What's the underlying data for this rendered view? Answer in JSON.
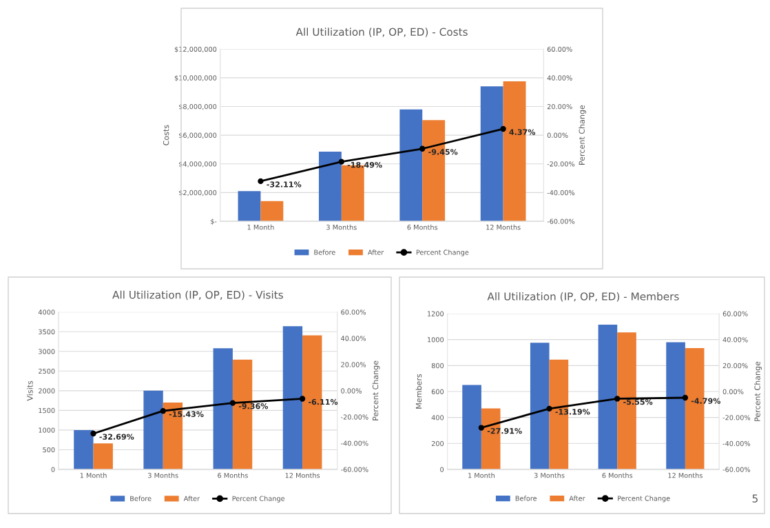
{
  "chart_data": [
    {
      "type": "bar",
      "title": "All Utilization (IP, OP, ED) - Costs",
      "ylabel": "Costs",
      "y2label": "Percent Change",
      "categories": [
        "1 Month",
        "3 Months",
        "6 Months",
        "12 Months"
      ],
      "series": [
        {
          "name": "Before",
          "color": "#4472c4",
          "values": [
            2100000,
            4850000,
            7800000,
            9400000
          ]
        },
        {
          "name": "After",
          "color": "#ed7d31",
          "values": [
            1400000,
            3900000,
            7050000,
            9750000
          ]
        },
        {
          "name": "Percent Change",
          "type": "line",
          "axis": "y2",
          "color": "#000000",
          "values": [
            -32.11,
            -18.49,
            -9.45,
            4.37
          ],
          "value_labels": [
            "-32.11%",
            "-18.49%",
            "-9.45%",
            "4.37%"
          ]
        }
      ],
      "ylim": [
        0,
        12000000
      ],
      "yticks": [
        {
          "value": 0,
          "label": "$-"
        },
        {
          "value": 2000000,
          "label": "$2,000,000"
        },
        {
          "value": 4000000,
          "label": "$4,000,000"
        },
        {
          "value": 6000000,
          "label": "$6,000,000"
        },
        {
          "value": 8000000,
          "label": "$8,000,000"
        },
        {
          "value": 10000000,
          "label": "$10,000,000"
        },
        {
          "value": 12000000,
          "label": "$12,000,000"
        }
      ],
      "y2lim": [
        -60,
        60
      ],
      "y2ticks": [
        {
          "value": -60,
          "label": "-60.00%"
        },
        {
          "value": -40,
          "label": "-40.00%"
        },
        {
          "value": -20,
          "label": "-20.00%"
        },
        {
          "value": 0,
          "label": "0.00%"
        },
        {
          "value": 20,
          "label": "20.00%"
        },
        {
          "value": 40,
          "label": "40.00%"
        },
        {
          "value": 60,
          "label": "60.00%"
        }
      ],
      "grid": "y",
      "legend": "bottom",
      "marker": "circle",
      "line_style": "solid"
    },
    {
      "type": "bar",
      "title": "All Utilization (IP, OP, ED) - Visits",
      "ylabel": "Visits",
      "y2label": "Percent Change",
      "categories": [
        "1 Month",
        "3 Months",
        "6 Months",
        "12 Months"
      ],
      "series": [
        {
          "name": "Before",
          "color": "#4472c4",
          "values": [
            1000,
            2000,
            3080,
            3640
          ]
        },
        {
          "name": "After",
          "color": "#ed7d31",
          "values": [
            660,
            1700,
            2790,
            3410
          ]
        },
        {
          "name": "Percent Change",
          "type": "line",
          "axis": "y2",
          "color": "#000000",
          "values": [
            -32.69,
            -15.43,
            -9.36,
            -6.11
          ],
          "value_labels": [
            "-32.69%",
            "-15.43%",
            "-9.36%",
            "-6.11%"
          ]
        }
      ],
      "ylim": [
        0,
        4000
      ],
      "yticks": [
        0,
        500,
        1000,
        1500,
        2000,
        2500,
        3000,
        3500,
        4000
      ],
      "y2lim": [
        -60,
        60
      ],
      "y2ticks": [
        {
          "value": -60,
          "label": "-60.00%"
        },
        {
          "value": -40,
          "label": "-40.00%"
        },
        {
          "value": -20,
          "label": "-20.00%"
        },
        {
          "value": 0,
          "label": "0.00%"
        },
        {
          "value": 20,
          "label": "20.00%"
        },
        {
          "value": 40,
          "label": "40.00%"
        },
        {
          "value": 60,
          "label": "60.00%"
        }
      ],
      "grid": "y",
      "legend": "bottom",
      "marker": "circle",
      "line_style": "solid"
    },
    {
      "type": "bar",
      "title": "All Utilization (IP, OP, ED) - Members",
      "ylabel": "Members",
      "y2label": "Percent Change",
      "categories": [
        "1 Month",
        "3 Months",
        "6 Months",
        "12 Months"
      ],
      "series": [
        {
          "name": "Before",
          "color": "#4472c4",
          "values": [
            650,
            975,
            1115,
            980
          ]
        },
        {
          "name": "After",
          "color": "#ed7d31",
          "values": [
            470,
            845,
            1055,
            935
          ]
        },
        {
          "name": "Percent Change",
          "type": "line",
          "axis": "y2",
          "color": "#000000",
          "values": [
            -27.91,
            -13.19,
            -5.55,
            -4.79
          ],
          "value_labels": [
            "-27.91%",
            "-13.19%",
            "-5.55%",
            "-4.79%"
          ]
        }
      ],
      "ylim": [
        0,
        1200
      ],
      "yticks": [
        0,
        200,
        400,
        600,
        800,
        1000,
        1200
      ],
      "y2lim": [
        -60,
        60
      ],
      "y2ticks": [
        {
          "value": -60,
          "label": "-60.00%"
        },
        {
          "value": -40,
          "label": "-40.00%"
        },
        {
          "value": -20,
          "label": "-20.00%"
        },
        {
          "value": 0,
          "label": "0.00%"
        },
        {
          "value": 20,
          "label": "20.00%"
        },
        {
          "value": 40,
          "label": "40.00%"
        },
        {
          "value": 60,
          "label": "60.00%"
        }
      ],
      "grid": "y",
      "legend": "bottom",
      "marker": "circle",
      "line_style": "solid",
      "annotations": [
        "5"
      ]
    }
  ]
}
